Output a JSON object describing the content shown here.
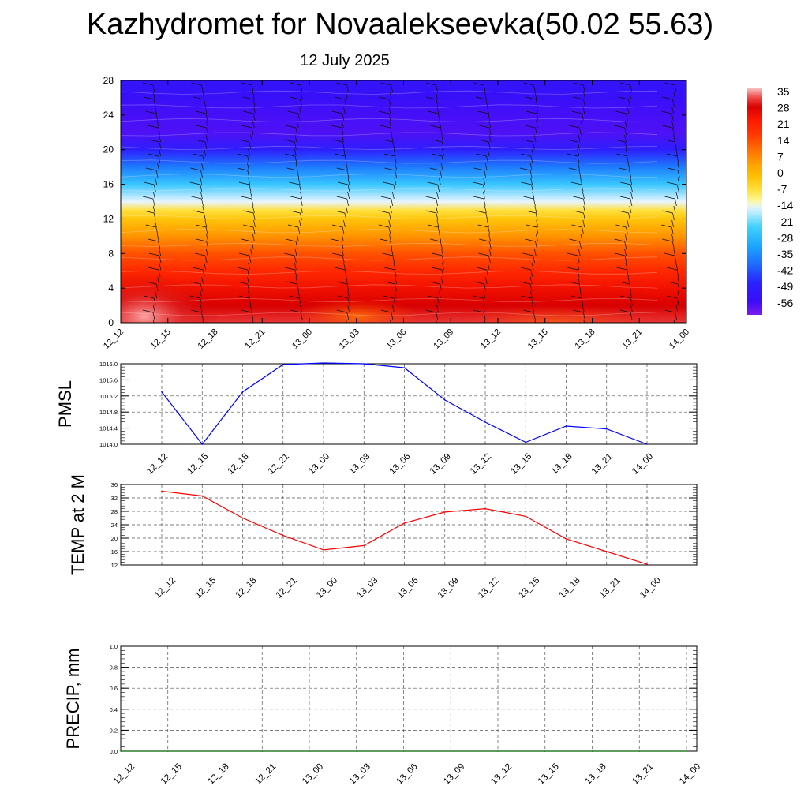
{
  "title": "Kazhydromet for Novaalekseevka(50.02 55.63)",
  "subtitle": "12 July 2025",
  "time_labels": [
    "12_12",
    "12_15",
    "12_18",
    "12_21",
    "13_00",
    "13_03",
    "13_06",
    "13_09",
    "13_12",
    "13_15",
    "13_18",
    "13_21",
    "14_00"
  ],
  "chart_data": [
    {
      "type": "heatmap",
      "title": "",
      "xlabel": "",
      "ylabel": "",
      "x": [
        "12_12",
        "12_15",
        "12_18",
        "12_21",
        "13_00",
        "13_03",
        "13_06",
        "13_09",
        "13_12",
        "13_15",
        "13_18",
        "13_21",
        "14_00"
      ],
      "y_ticks": [
        0,
        4,
        8,
        12,
        16,
        20,
        24,
        28
      ],
      "ylim": [
        0,
        28
      ],
      "colorbar_labels": [
        "35",
        "28",
        "21",
        "14",
        "7",
        "0",
        "-7",
        "-14",
        "-21",
        "-28",
        "-35",
        "-42",
        "-49",
        "-56"
      ],
      "colorbar_range": [
        -60,
        38
      ],
      "profile": [
        {
          "level": 0,
          "value": 33
        },
        {
          "level": 2,
          "value": 30
        },
        {
          "level": 4,
          "value": 26
        },
        {
          "level": 6,
          "value": 21
        },
        {
          "level": 8,
          "value": 15
        },
        {
          "level": 10,
          "value": 7
        },
        {
          "level": 12,
          "value": -1
        },
        {
          "level": 13,
          "value": -6
        },
        {
          "level": 14,
          "value": -13
        },
        {
          "level": 16,
          "value": -24
        },
        {
          "level": 18,
          "value": -36
        },
        {
          "level": 20,
          "value": -48
        },
        {
          "level": 22,
          "value": -56
        },
        {
          "level": 24,
          "value": -55
        },
        {
          "level": 26,
          "value": -53
        },
        {
          "level": 28,
          "value": -51
        }
      ],
      "overlay": "wind barbs",
      "colors": {
        "hot": "#cc0000",
        "warm": "#ff8000",
        "neutral": "#fff080",
        "cold": "#30a0ff",
        "coldest": "#4010f0"
      }
    },
    {
      "type": "line",
      "ylabel": "PMSL",
      "categories": [
        "12_12",
        "12_15",
        "12_18",
        "12_21",
        "13_00",
        "13_03",
        "13_06",
        "13_09",
        "13_12",
        "13_15",
        "13_18",
        "13_21",
        "14_00"
      ],
      "values": [
        1015.3,
        1014.0,
        1015.3,
        1015.98,
        1016.02,
        1016.0,
        1015.9,
        1015.1,
        1014.55,
        1014.05,
        1014.45,
        1014.38,
        1014.0
      ],
      "ylim": [
        1014.0,
        1016.0
      ],
      "y_ticks": [
        "1014.0",
        "1014.4",
        "1014.8",
        "1015.2",
        "1015.6",
        "1016.0"
      ],
      "color": "#0000ff",
      "grid": true
    },
    {
      "type": "line",
      "ylabel": "TEMP at 2 M",
      "categories": [
        "12_12",
        "12_15",
        "12_18",
        "12_21",
        "13_00",
        "13_03",
        "13_06",
        "13_09",
        "13_12",
        "13_15",
        "13_18",
        "13_21",
        "14_00"
      ],
      "values": [
        34,
        32.6,
        26,
        20.8,
        16.5,
        17.8,
        24.5,
        27.8,
        28.8,
        26.5,
        19.8,
        16,
        12.2
      ],
      "ylim": [
        12,
        36
      ],
      "y_ticks": [
        "12",
        "16",
        "20",
        "24",
        "28",
        "32",
        "36"
      ],
      "color": "#ff0000",
      "grid": true
    },
    {
      "type": "line",
      "ylabel": "PRECIP, mm",
      "categories": [
        "12_12",
        "12_15",
        "12_18",
        "12_21",
        "13_00",
        "13_03",
        "13_06",
        "13_09",
        "13_12",
        "13_15",
        "13_18",
        "13_21",
        "14_00"
      ],
      "values": [
        0,
        0,
        0,
        0,
        0,
        0,
        0,
        0,
        0,
        0,
        0,
        0,
        0
      ],
      "ylim": [
        0.0,
        1.0
      ],
      "y_ticks": [
        "0.0",
        "0.2",
        "0.4",
        "0.6",
        "0.8",
        "1.0"
      ],
      "color": "#006400",
      "grid": true
    }
  ]
}
